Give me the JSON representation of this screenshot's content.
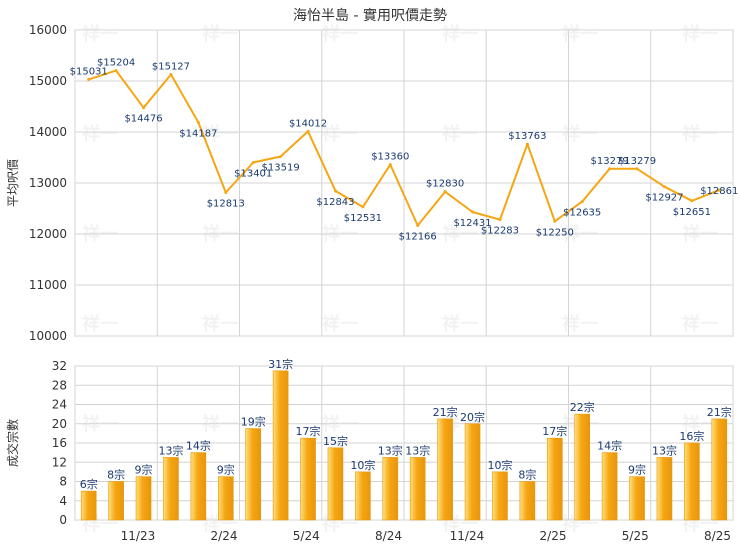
{
  "title": "海怡半島 - 實用呎價走勢",
  "watermark": "祥一",
  "colors": {
    "line": "#f5a613",
    "bar_light": "#ffe07a",
    "bar_dark": "#e8960c",
    "label_text": "#1a3a6e",
    "grid": "#d4d4d4",
    "axis_text": "#333333"
  },
  "chart_data": [
    {
      "type": "line",
      "ylabel": "平均呎價",
      "ylim": [
        10000,
        16000
      ],
      "yticks": [
        "10000",
        "11000",
        "12000",
        "13000",
        "14000",
        "15000",
        "16000"
      ],
      "grid": true,
      "series": [
        {
          "values": [
            15031,
            15204,
            14476,
            15127,
            14187,
            12813,
            13401,
            13519,
            14012,
            12843,
            12531,
            13360,
            12166,
            12830,
            12431,
            12283,
            13763,
            12250,
            12635,
            13279,
            13279,
            12927,
            12651,
            12861
          ],
          "labels": [
            "$15031",
            "$15204",
            "$14476",
            "$15127",
            "$14187",
            "$12813",
            "$13401",
            "$13519",
            "$14012",
            "$12843",
            "$12531",
            "$13360",
            "$12166",
            "$12830",
            "$12431",
            "$12283",
            "$13763",
            "$12250",
            "$12635",
            "$13279",
            "$13279",
            "$12927",
            "$12651",
            "$12861"
          ]
        }
      ]
    },
    {
      "type": "bar",
      "ylabel": "成交宗數",
      "ylim": [
        0,
        32
      ],
      "yticks": [
        "0",
        "4",
        "8",
        "12",
        "16",
        "20",
        "24",
        "28",
        "32"
      ],
      "grid": true,
      "xticks": [
        "11/23",
        "2/24",
        "5/24",
        "8/24",
        "11/24",
        "2/25",
        "5/25",
        "8/25"
      ],
      "series": [
        {
          "values": [
            6,
            8,
            9,
            13,
            14,
            9,
            19,
            31,
            17,
            15,
            10,
            13,
            13,
            21,
            20,
            10,
            8,
            17,
            22,
            14,
            9,
            13,
            16,
            21
          ],
          "labels": [
            "6宗",
            "8宗",
            "9宗",
            "13宗",
            "14宗",
            "9宗",
            "19宗",
            "31宗",
            "17宗",
            "15宗",
            "10宗",
            "13宗",
            "13宗",
            "21宗",
            "20宗",
            "10宗",
            "8宗",
            "17宗",
            "22宗",
            "14宗",
            "9宗",
            "13宗",
            "16宗",
            "21宗"
          ]
        }
      ]
    }
  ]
}
